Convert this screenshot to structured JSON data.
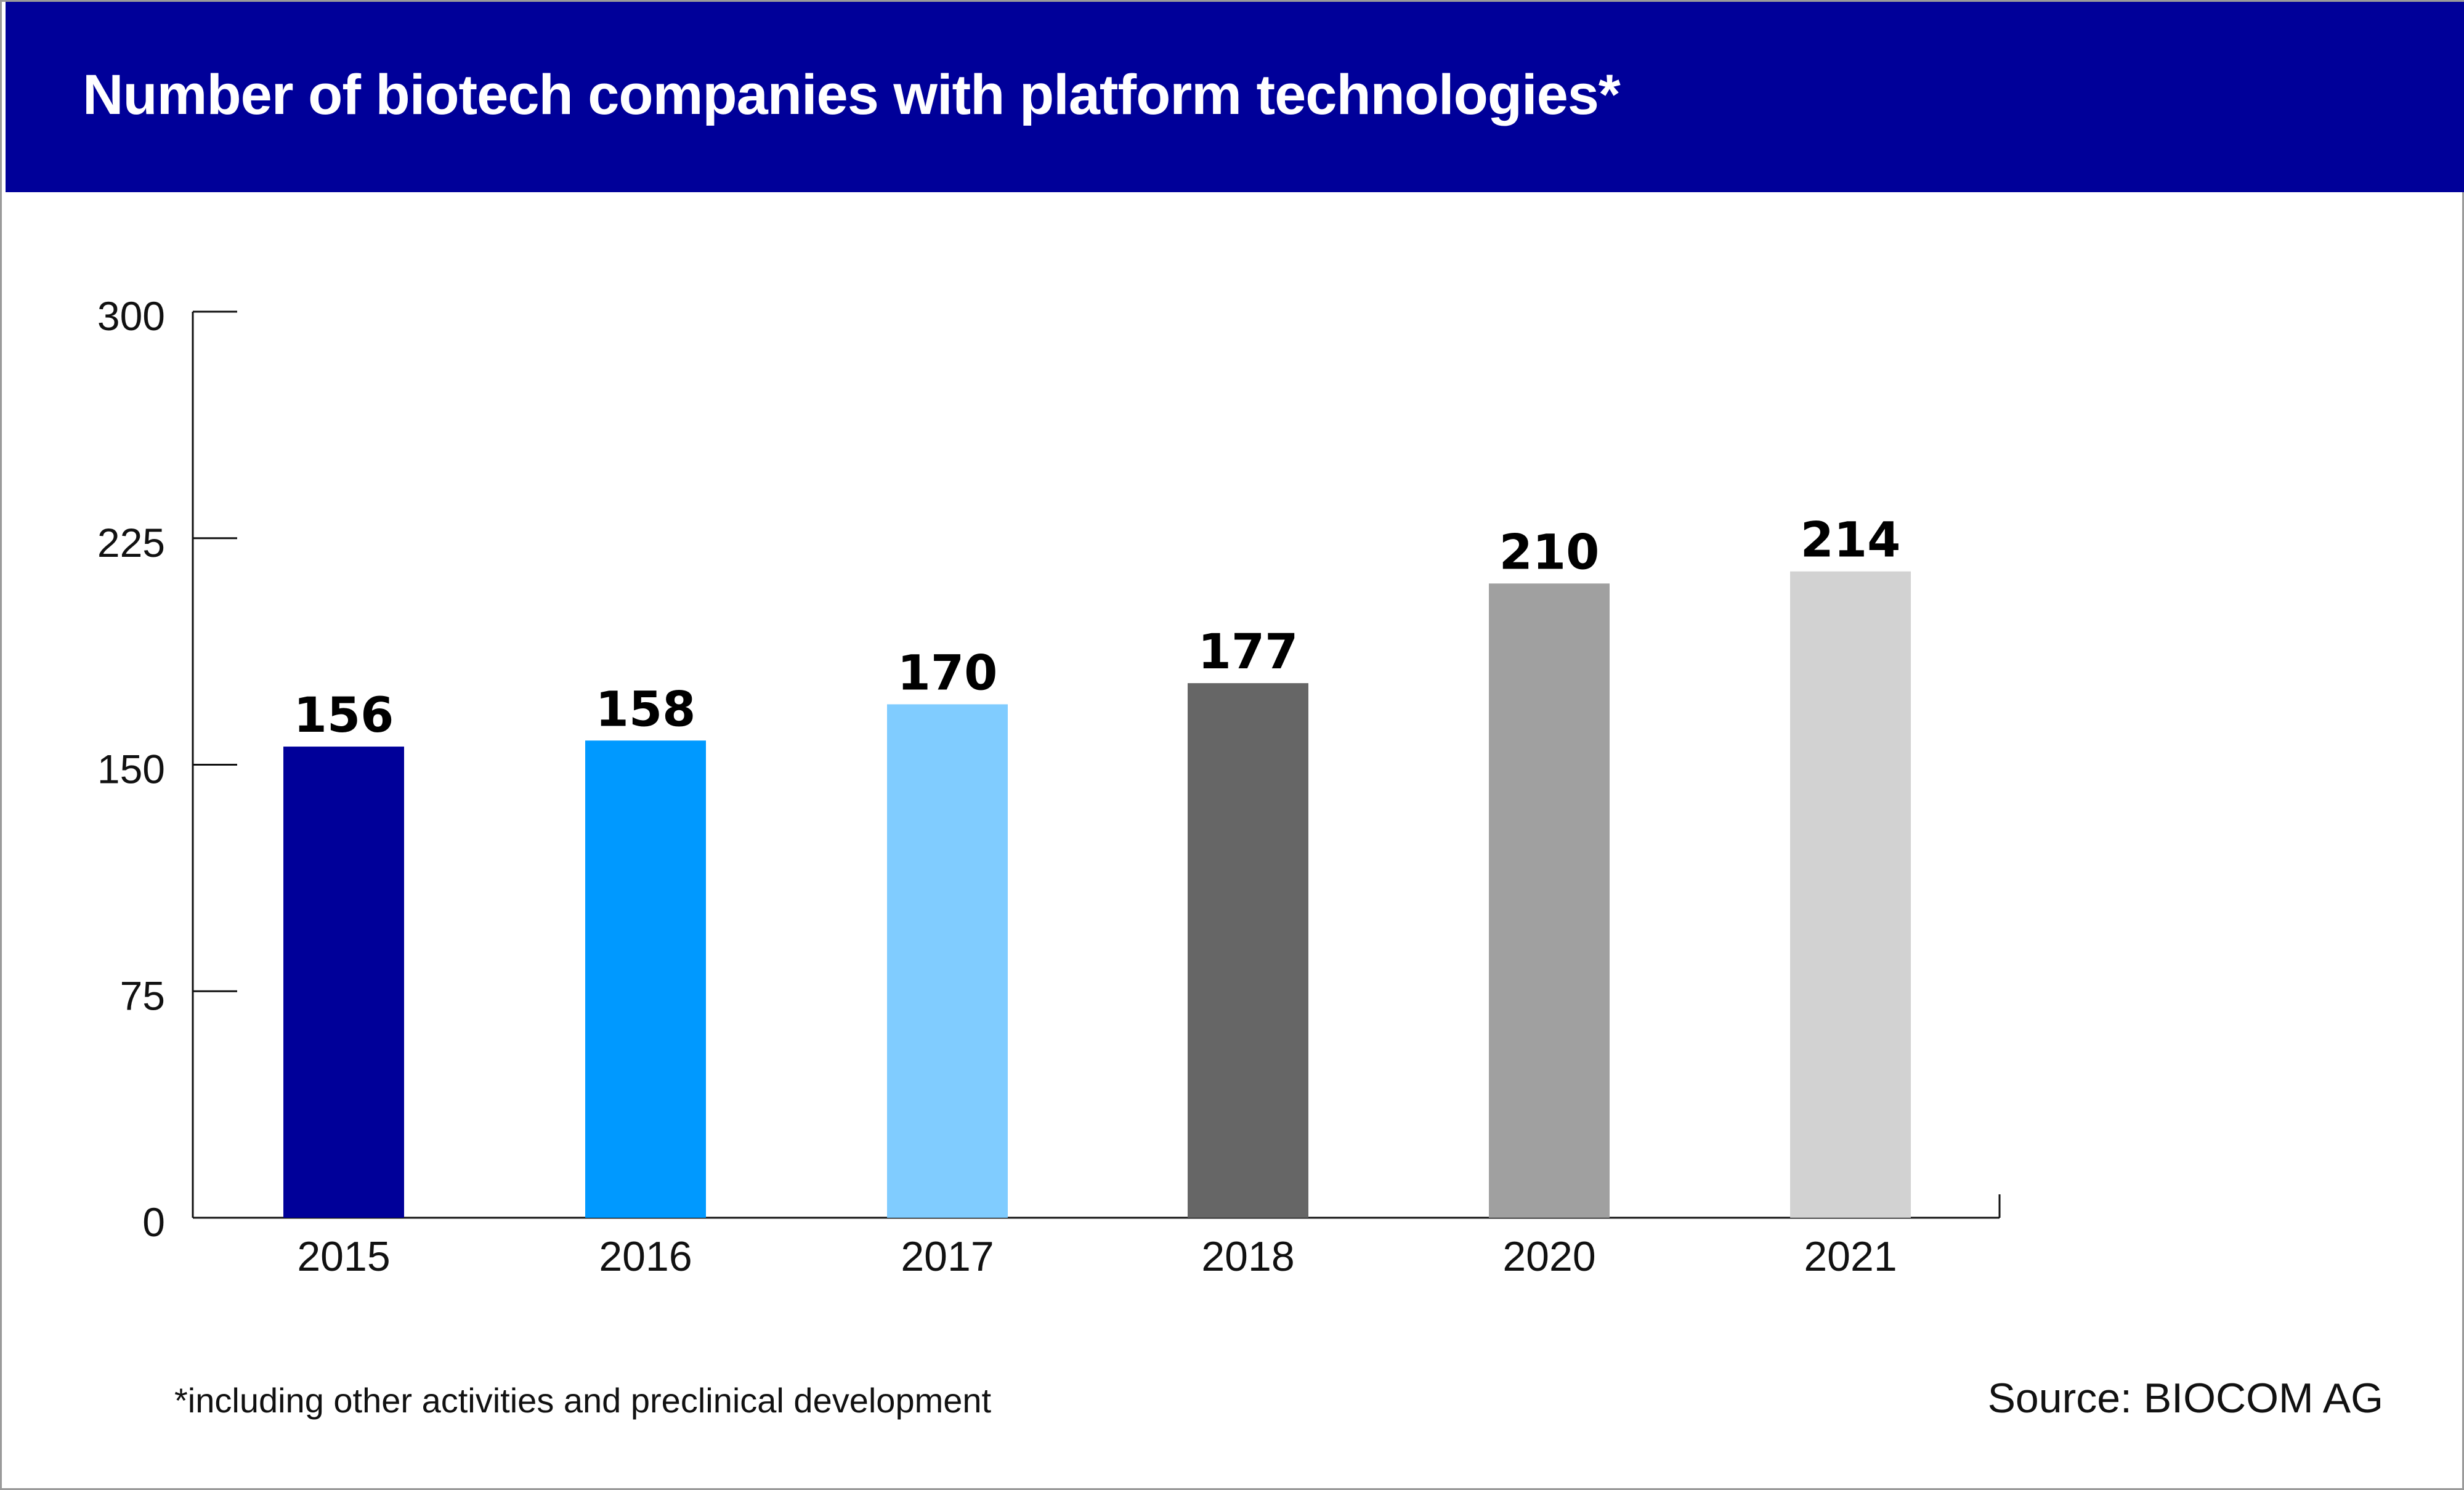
{
  "footnote": "*including other activities and preclinical development",
  "source": "Source: BIOCOM AG",
  "chart_data": {
    "type": "bar",
    "title": "Number of biotech companies with platform technologies*",
    "categories": [
      "2015",
      "2016",
      "2017",
      "2018",
      "2020",
      "2021"
    ],
    "values": [
      156,
      158,
      170,
      177,
      210,
      214
    ],
    "data_labels": [
      "156",
      "158",
      "170",
      "177",
      "210",
      "214"
    ],
    "bar_colors": [
      "#000099",
      "#0099ff",
      "#80ccff",
      "#666666",
      "#a0a0a0",
      "#d2d2d2"
    ],
    "ylim": [
      0,
      300
    ],
    "yticks": [
      0,
      75,
      150,
      225,
      300
    ],
    "ytick_labels": [
      "0",
      "75",
      "150",
      "225",
      "300"
    ],
    "xlabel": "",
    "ylabel": "",
    "grid": false,
    "legend": "none"
  }
}
